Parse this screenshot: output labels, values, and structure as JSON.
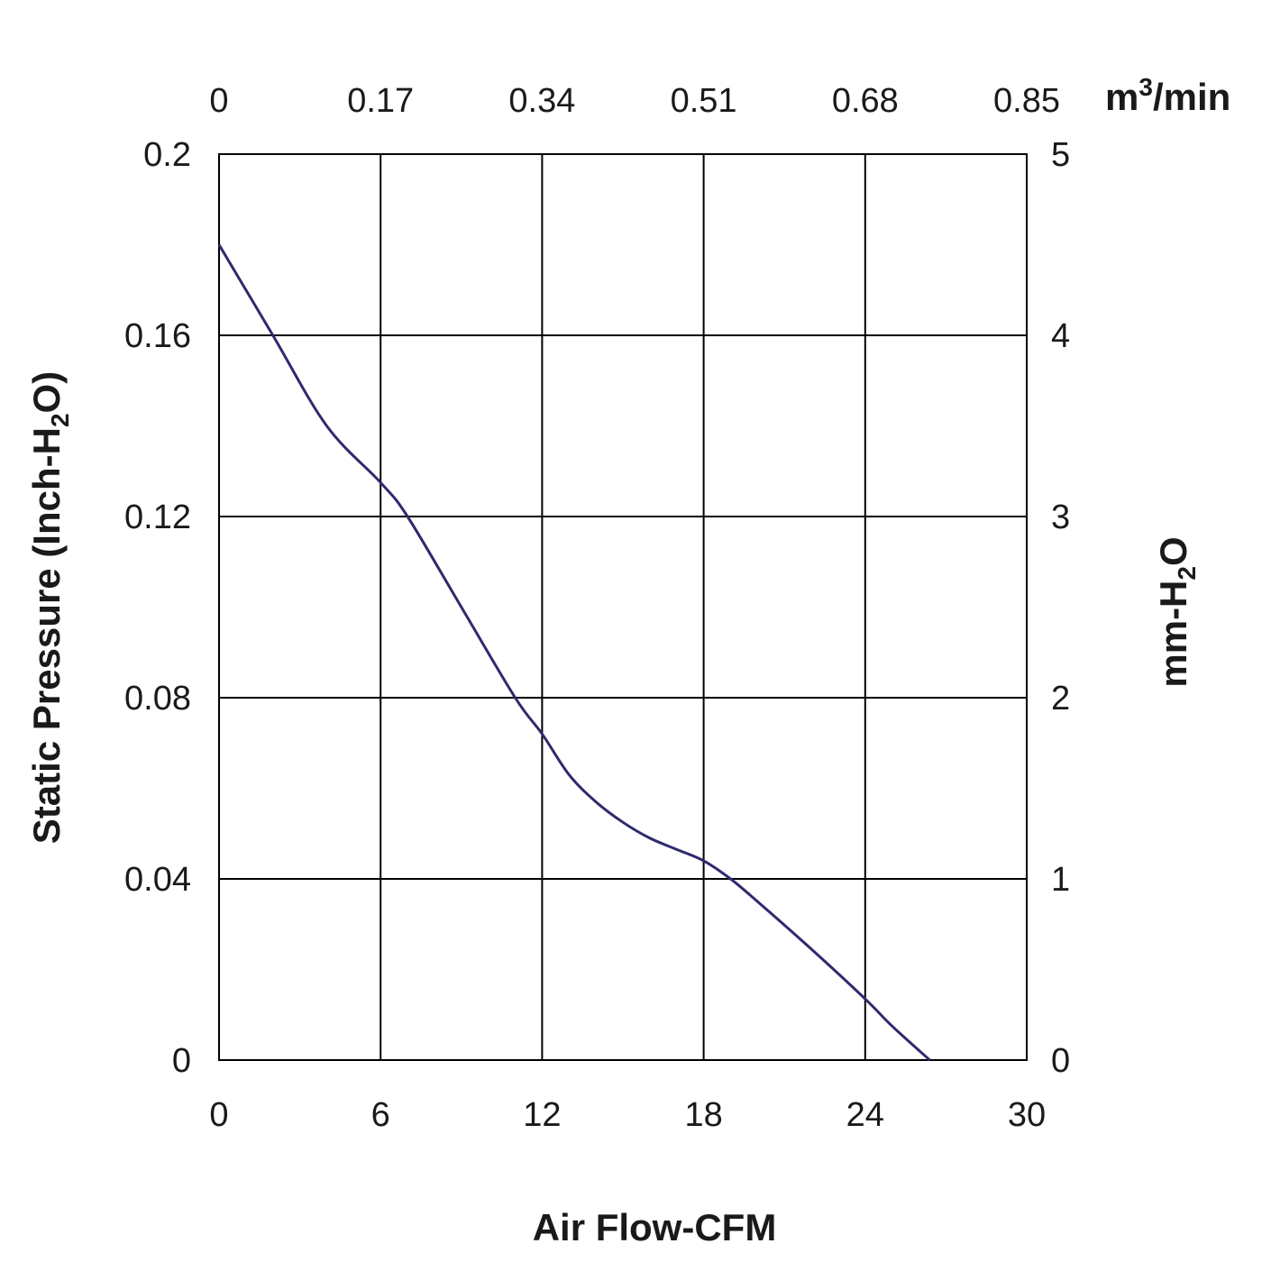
{
  "chart_data": {
    "type": "line",
    "x_axis": {
      "label": "Air Flow-CFM",
      "range": [
        0,
        30
      ],
      "ticks": [
        "0",
        "6",
        "12",
        "18",
        "24",
        "30"
      ]
    },
    "x2_axis": {
      "unit_base": "m",
      "unit_sup": "3",
      "unit_tail": "/min",
      "range": [
        0,
        0.85
      ],
      "ticks": [
        "0",
        "0.17",
        "0.34",
        "0.51",
        "0.68",
        "0.85"
      ]
    },
    "y_axis": {
      "label_pre": "Static Pressure (Inch-H",
      "label_sub": "2",
      "label_post": "O)",
      "range": [
        0,
        0.2
      ],
      "ticks": [
        "0",
        "0.04",
        "0.08",
        "0.12",
        "0.16",
        "0.2"
      ]
    },
    "y2_axis": {
      "label_pre": "mm-H",
      "label_sub": "2",
      "label_post": "O",
      "range": [
        0,
        5
      ],
      "ticks": [
        "0",
        "1",
        "2",
        "3",
        "4",
        "5"
      ]
    },
    "grid": true,
    "series": [
      {
        "color": "#2e2a6e",
        "points": [
          [
            0,
            0.18
          ],
          [
            2,
            0.16
          ],
          [
            4,
            0.14
          ],
          [
            6,
            0.1275
          ],
          [
            7,
            0.12
          ],
          [
            9,
            0.1
          ],
          [
            11,
            0.08
          ],
          [
            12,
            0.072
          ],
          [
            13,
            0.063
          ],
          [
            14,
            0.057
          ],
          [
            15,
            0.0525
          ],
          [
            16,
            0.049
          ],
          [
            17,
            0.0465
          ],
          [
            18,
            0.044
          ],
          [
            19,
            0.04
          ],
          [
            20,
            0.035
          ],
          [
            22,
            0.0245
          ],
          [
            24,
            0.0135
          ],
          [
            25,
            0.0075
          ],
          [
            26.4,
            0.0
          ]
        ]
      }
    ]
  }
}
